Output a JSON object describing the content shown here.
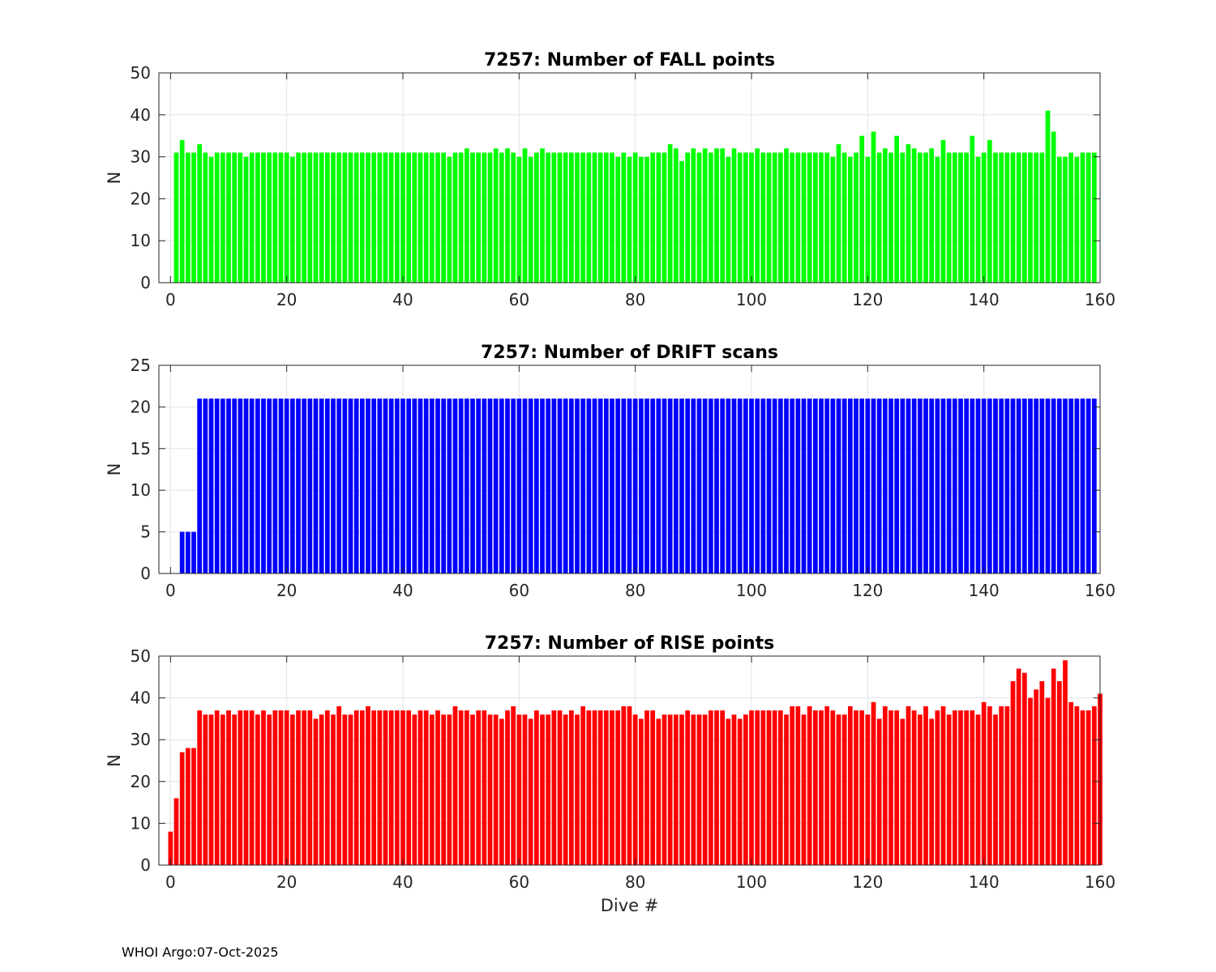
{
  "footer": "WHOI Argo:07-Oct-2025",
  "chart_data": [
    {
      "type": "bar",
      "title": "7257: Number of FALL points",
      "xlabel": "",
      "ylabel": "N",
      "color": "#00ff00",
      "xlim": [
        -2,
        160
      ],
      "ylim": [
        0,
        50
      ],
      "xticks": [
        0,
        20,
        40,
        60,
        80,
        100,
        120,
        140,
        160
      ],
      "yticks": [
        0,
        10,
        20,
        30,
        40,
        50
      ],
      "grid": true,
      "x_start": 1,
      "values": [
        31,
        34,
        31,
        31,
        33,
        31,
        30,
        31,
        31,
        31,
        31,
        31,
        30,
        31,
        31,
        31,
        31,
        31,
        31,
        31,
        30,
        31,
        31,
        31,
        31,
        31,
        31,
        31,
        31,
        31,
        31,
        31,
        31,
        31,
        31,
        31,
        31,
        31,
        31,
        31,
        31,
        31,
        31,
        31,
        31,
        31,
        31,
        30,
        31,
        31,
        32,
        31,
        31,
        31,
        31,
        32,
        31,
        32,
        31,
        30,
        32,
        30,
        31,
        32,
        31,
        31,
        31,
        31,
        31,
        31,
        31,
        31,
        31,
        31,
        31,
        31,
        30,
        31,
        30,
        31,
        30,
        30,
        31,
        31,
        31,
        33,
        32,
        29,
        31,
        32,
        31,
        32,
        31,
        32,
        32,
        30,
        32,
        31,
        31,
        31,
        32,
        31,
        31,
        31,
        31,
        32,
        31,
        31,
        31,
        31,
        31,
        31,
        31,
        30,
        33,
        31,
        30,
        31,
        35,
        30,
        36,
        31,
        32,
        31,
        35,
        31,
        33,
        32,
        31,
        31,
        32,
        30,
        34,
        31,
        31,
        31,
        31,
        35,
        30,
        31,
        34,
        31,
        31,
        31,
        31,
        31,
        31,
        31,
        31,
        31,
        41,
        36,
        30,
        30,
        31,
        30,
        31,
        31,
        31
      ]
    },
    {
      "type": "bar",
      "title": "7257: Number of DRIFT scans",
      "xlabel": "",
      "ylabel": "N",
      "color": "#0000ff",
      "xlim": [
        -2,
        160
      ],
      "ylim": [
        0,
        25
      ],
      "xticks": [
        0,
        20,
        40,
        60,
        80,
        100,
        120,
        140,
        160
      ],
      "yticks": [
        0,
        5,
        10,
        15,
        20,
        25
      ],
      "grid": true,
      "x_start": 2,
      "values": [
        5,
        5,
        5,
        21,
        21,
        21,
        21,
        21,
        21,
        21,
        21,
        21,
        21,
        21,
        21,
        21,
        21,
        21,
        21,
        21,
        21,
        21,
        21,
        21,
        21,
        21,
        21,
        21,
        21,
        21,
        21,
        21,
        21,
        21,
        21,
        21,
        21,
        21,
        21,
        21,
        21,
        21,
        21,
        21,
        21,
        21,
        21,
        21,
        21,
        21,
        21,
        21,
        21,
        21,
        21,
        21,
        21,
        21,
        21,
        21,
        21,
        21,
        21,
        21,
        21,
        21,
        21,
        21,
        21,
        21,
        21,
        21,
        21,
        21,
        21,
        21,
        21,
        21,
        21,
        21,
        21,
        21,
        21,
        21,
        21,
        21,
        21,
        21,
        21,
        21,
        21,
        21,
        21,
        21,
        21,
        21,
        21,
        21,
        21,
        21,
        21,
        21,
        21,
        21,
        21,
        21,
        21,
        21,
        21,
        21,
        21,
        21,
        21,
        21,
        21,
        21,
        21,
        21,
        21,
        21,
        21,
        21,
        21,
        21,
        21,
        21,
        21,
        21,
        21,
        21,
        21,
        21,
        21,
        21,
        21,
        21,
        21,
        21,
        21,
        21,
        21,
        21,
        21,
        21,
        21,
        21,
        21,
        21,
        21,
        21,
        21,
        21,
        21,
        21,
        21,
        21,
        21,
        21
      ]
    },
    {
      "type": "bar",
      "title": "7257: Number of RISE points",
      "xlabel": "Dive #",
      "ylabel": "N",
      "color": "#ff0000",
      "xlim": [
        -2,
        160
      ],
      "ylim": [
        0,
        50
      ],
      "xticks": [
        0,
        20,
        40,
        60,
        80,
        100,
        120,
        140,
        160
      ],
      "yticks": [
        0,
        10,
        20,
        30,
        40,
        50
      ],
      "grid": true,
      "x_start": 0,
      "values": [
        8,
        16,
        27,
        28,
        28,
        37,
        36,
        36,
        37,
        36,
        37,
        36,
        37,
        37,
        37,
        36,
        37,
        36,
        37,
        37,
        37,
        36,
        37,
        37,
        37,
        35,
        36,
        37,
        36,
        38,
        36,
        36,
        37,
        37,
        38,
        37,
        37,
        37,
        37,
        37,
        37,
        37,
        36,
        37,
        37,
        36,
        37,
        36,
        36,
        38,
        37,
        37,
        36,
        37,
        37,
        36,
        36,
        35,
        37,
        38,
        36,
        36,
        35,
        37,
        36,
        36,
        37,
        37,
        36,
        37,
        36,
        38,
        37,
        37,
        37,
        37,
        37,
        37,
        38,
        38,
        36,
        35,
        37,
        37,
        35,
        36,
        36,
        36,
        36,
        37,
        36,
        36,
        36,
        37,
        37,
        37,
        35,
        36,
        35,
        36,
        37,
        37,
        37,
        37,
        37,
        37,
        36,
        38,
        38,
        36,
        38,
        37,
        37,
        38,
        37,
        36,
        36,
        38,
        37,
        37,
        36,
        39,
        35,
        38,
        37,
        37,
        35,
        38,
        37,
        36,
        38,
        35,
        37,
        38,
        36,
        37,
        37,
        37,
        37,
        36,
        39,
        38,
        36,
        38,
        38,
        44,
        47,
        46,
        40,
        42,
        44,
        40,
        47,
        44,
        49,
        39,
        38,
        37,
        37,
        38,
        41
      ]
    }
  ]
}
